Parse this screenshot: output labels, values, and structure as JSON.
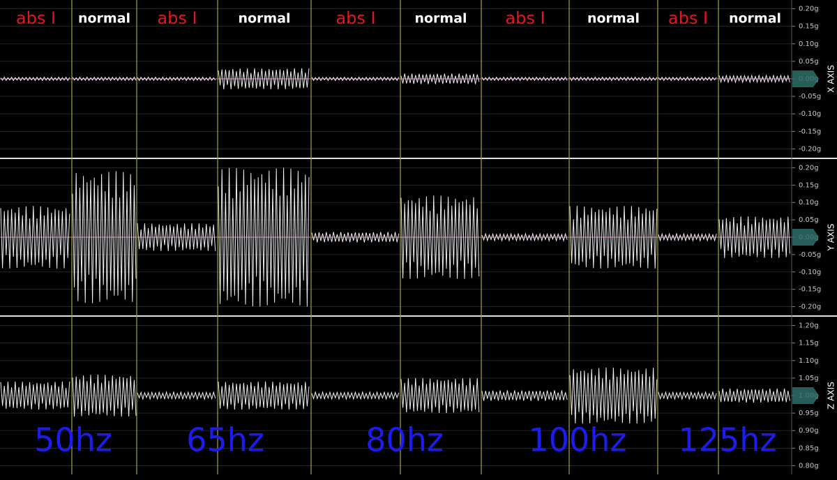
{
  "segments": [
    "abs I",
    "normal",
    "abs I",
    "normal",
    "abs I",
    "normal",
    "abs I",
    "normal",
    "abs I",
    "normal"
  ],
  "frequencies": [
    "50hz",
    "65hz",
    "80hz",
    "100hz",
    "125hz"
  ],
  "colors": {
    "abs": "#e8141e",
    "normal": "#ffffff",
    "frequency": "#1c1cf0",
    "trace": "#f0f0f0",
    "divider": "#a8a23a",
    "zero": "#d070c0",
    "marker": "#2f6f6a"
  },
  "chart_data": [
    {
      "type": "waveform",
      "axis_label": "X AXIS",
      "ylim": [
        -0.225,
        0.225
      ],
      "baseline": 0,
      "yticks": [
        {
          "value": 0.2,
          "label": "0.20g"
        },
        {
          "value": 0.15,
          "label": "0.15g"
        },
        {
          "value": 0.1,
          "label": "0.10g"
        },
        {
          "value": 0.05,
          "label": "0.05g"
        },
        {
          "value": 0,
          "label": "0.00g"
        },
        {
          "value": -0.05,
          "label": "-0.05g"
        },
        {
          "value": -0.1,
          "label": "-0.10g"
        },
        {
          "value": -0.15,
          "label": "-0.15g"
        },
        {
          "value": -0.2,
          "label": "-0.20g"
        }
      ],
      "amplitudes": [
        0.005,
        0.005,
        0.005,
        0.03,
        0.005,
        0.015,
        0.005,
        0.005,
        0.005,
        0.01
      ]
    },
    {
      "type": "waveform",
      "axis_label": "Y AXIS",
      "ylim": [
        -0.225,
        0.225
      ],
      "baseline": 0,
      "yticks": [
        {
          "value": 0.2,
          "label": "0.20g"
        },
        {
          "value": 0.15,
          "label": "0.15g"
        },
        {
          "value": 0.1,
          "label": "0.10g"
        },
        {
          "value": 0.05,
          "label": "0.05g"
        },
        {
          "value": 0,
          "label": "0.00g"
        },
        {
          "value": -0.05,
          "label": "-0.05g"
        },
        {
          "value": -0.1,
          "label": "-0.10g"
        },
        {
          "value": -0.15,
          "label": "-0.15g"
        },
        {
          "value": -0.2,
          "label": "-0.20g"
        }
      ],
      "amplitudes": [
        0.09,
        0.19,
        0.04,
        0.2,
        0.015,
        0.12,
        0.01,
        0.09,
        0.01,
        0.06
      ]
    },
    {
      "type": "waveform",
      "axis_label": "Z AXIS",
      "ylim": [
        0.775,
        1.225
      ],
      "baseline": 1,
      "yticks": [
        {
          "value": 1.2,
          "label": "1.20g"
        },
        {
          "value": 1.15,
          "label": "1.15g"
        },
        {
          "value": 1.1,
          "label": "1.10g"
        },
        {
          "value": 1.05,
          "label": "1.05g"
        },
        {
          "value": 1,
          "label": "1.00g"
        },
        {
          "value": 0.95,
          "label": "0.95g"
        },
        {
          "value": 0.9,
          "label": "0.90g"
        },
        {
          "value": 0.85,
          "label": "0.85g"
        },
        {
          "value": 0.8,
          "label": "0.80g"
        }
      ],
      "amplitudes": [
        0.04,
        0.06,
        0.01,
        0.04,
        0.01,
        0.05,
        0.015,
        0.08,
        0.01,
        0.02
      ]
    }
  ]
}
